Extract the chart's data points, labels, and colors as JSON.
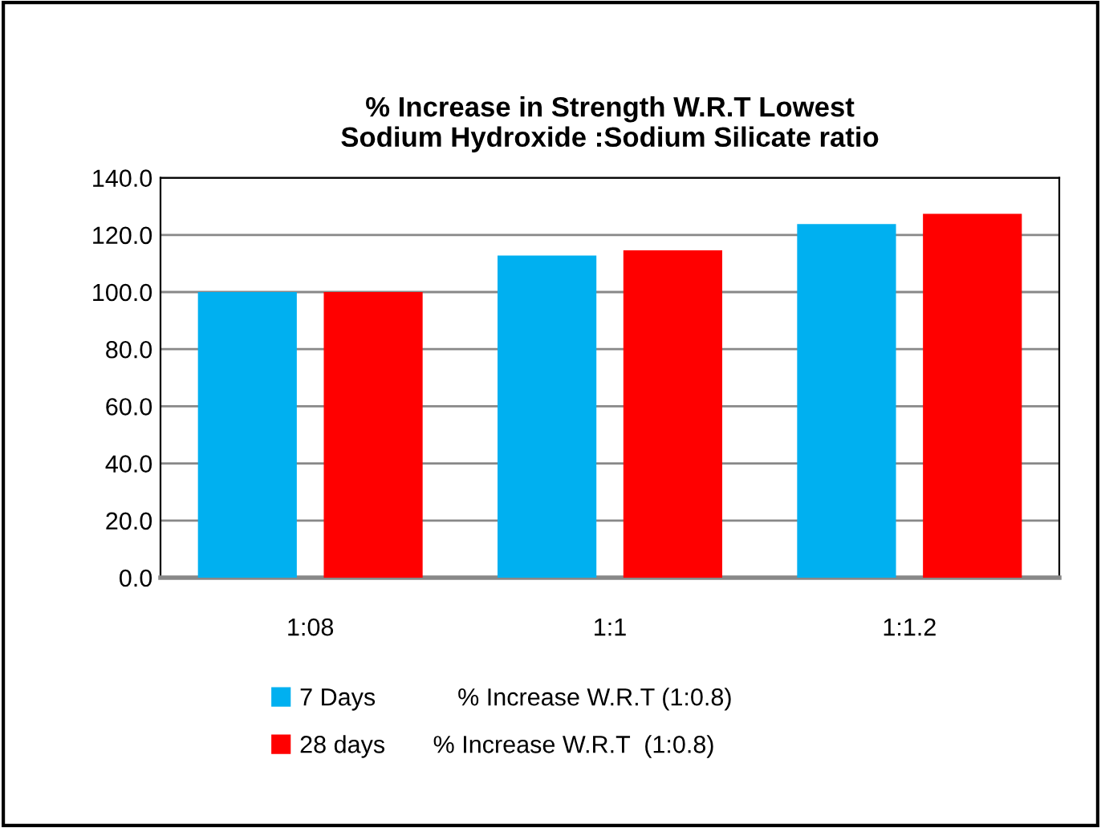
{
  "chart_data": {
    "type": "bar",
    "title": "% Increase in Strength W.R.T Lowest\nSodium Hydroxide :Sodium Silicate ratio",
    "categories": [
      "1:08",
      "1:1",
      "1:1.2"
    ],
    "series": [
      {
        "name": "7 Days            % Increase W.R.T (1:0.8)",
        "color": "#00b0f0",
        "values": [
          100,
          112.8,
          123.8
        ]
      },
      {
        "name": "28 days       % Increase W.R.T  (1:0.8)",
        "color": "#ff0000",
        "values": [
          100,
          114.6,
          127.4
        ]
      }
    ],
    "ylim": [
      0,
      140
    ],
    "yticks": [
      {
        "value": 0,
        "label": "0.0"
      },
      {
        "value": 20,
        "label": "20.0"
      },
      {
        "value": 40,
        "label": "40.0"
      },
      {
        "value": 60,
        "label": "60.0"
      },
      {
        "value": 80,
        "label": "80.0"
      },
      {
        "value": 100,
        "label": "100.0"
      },
      {
        "value": 120,
        "label": "120.0"
      },
      {
        "value": 140,
        "label": "140.0"
      }
    ],
    "grid": "y",
    "legend": "bottom"
  }
}
